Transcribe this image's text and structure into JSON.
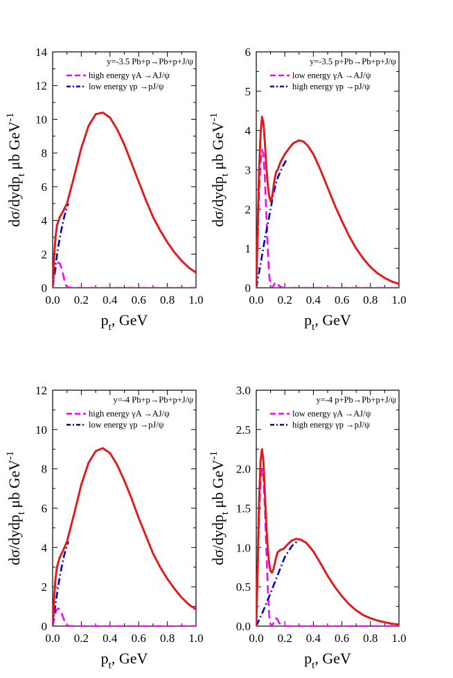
{
  "colors": {
    "total": "#e31a1c",
    "high": "#ff00ff",
    "low": "#0000cc",
    "axis": "#000000"
  },
  "chart_data": [
    {
      "id": "top-left",
      "type": "line",
      "xlabel": "p_t, GeV",
      "ylabel": "dσ/dydp_t μb GeV^-1",
      "xlim": [
        0,
        1.0
      ],
      "ylim": [
        0,
        14
      ],
      "xticks": [
        "0.0",
        "0.2",
        "0.4",
        "0.6",
        "0.8",
        "1.0"
      ],
      "xtick_values": [
        0,
        0.2,
        0.4,
        0.6,
        0.8,
        1.0
      ],
      "yticks": [
        "0",
        "2",
        "4",
        "6",
        "8",
        "10",
        "12",
        "14"
      ],
      "ytick_values": [
        0,
        2,
        4,
        6,
        8,
        10,
        12,
        14
      ],
      "legend_title": "y=-3.5 Pb+p→Pb+p+J/ψ",
      "legend_position": "top-right",
      "series": [
        {
          "key": "high",
          "name": "high energy γA →AJ/ψ",
          "style": "dashed",
          "x": [
            0,
            0.01,
            0.02,
            0.03,
            0.04,
            0.05,
            0.06,
            0.07,
            0.08,
            0.09,
            0.1,
            0.12,
            0.15,
            0.2,
            0.3,
            0.5,
            0.7,
            1.0
          ],
          "y": [
            0,
            0.6,
            1.1,
            1.4,
            1.5,
            1.45,
            1.2,
            0.9,
            0.5,
            0.2,
            0.05,
            0.02,
            0.01,
            0.0,
            0.0,
            0.0,
            0.0,
            0.0
          ]
        },
        {
          "key": "low",
          "name": "low energy γp →pJ/ψ",
          "style": "dashdot",
          "x": [
            0,
            0.02,
            0.04,
            0.06,
            0.08,
            0.1,
            0.11
          ],
          "y": [
            0,
            1.3,
            2.5,
            3.4,
            4.2,
            4.8,
            5.0
          ]
        },
        {
          "key": "total",
          "name": "",
          "style": "solid",
          "x": [
            0,
            0.01,
            0.02,
            0.03,
            0.05,
            0.07,
            0.1,
            0.15,
            0.2,
            0.25,
            0.3,
            0.35,
            0.4,
            0.45,
            0.5,
            0.55,
            0.6,
            0.65,
            0.7,
            0.75,
            0.8,
            0.85,
            0.9,
            0.95,
            1.0
          ],
          "y": [
            0,
            1.8,
            3.0,
            3.7,
            4.2,
            4.5,
            5.0,
            6.6,
            8.3,
            9.6,
            10.3,
            10.4,
            10.1,
            9.4,
            8.5,
            7.4,
            6.3,
            5.2,
            4.2,
            3.4,
            2.7,
            2.1,
            1.6,
            1.2,
            0.9
          ]
        }
      ]
    },
    {
      "id": "top-right",
      "type": "line",
      "xlabel": "p_t, GeV",
      "ylabel": "dσ/dydp_t μb GeV^-1",
      "xlim": [
        0,
        1.0
      ],
      "ylim": [
        0,
        6
      ],
      "xticks": [
        "0.0",
        "0.2",
        "0.4",
        "0.6",
        "0.8",
        "1.0"
      ],
      "xtick_values": [
        0,
        0.2,
        0.4,
        0.6,
        0.8,
        1.0
      ],
      "yticks": [
        "0",
        "1",
        "2",
        "3",
        "4",
        "5",
        "6"
      ],
      "ytick_values": [
        0,
        1,
        2,
        3,
        4,
        5,
        6
      ],
      "legend_title": "y=-3.5 p+Pb→Pb+p+J/ψ",
      "legend_position": "top-right",
      "series": [
        {
          "key": "high",
          "name": "low energy γA →AJ/ψ",
          "style": "dashed",
          "x": [
            0,
            0.01,
            0.02,
            0.03,
            0.04,
            0.05,
            0.06,
            0.07,
            0.08,
            0.09,
            0.1,
            0.11,
            0.12,
            0.13,
            0.14,
            0.15,
            0.16,
            0.18,
            0.2,
            0.3,
            0.5,
            1.0
          ],
          "y": [
            0,
            1.2,
            2.4,
            3.2,
            3.5,
            3.4,
            2.8,
            1.9,
            1.0,
            0.35,
            0.03,
            0.0,
            0.05,
            0.12,
            0.14,
            0.1,
            0.05,
            0.01,
            0.0,
            0.0,
            0.0,
            0.0
          ]
        },
        {
          "key": "low",
          "name": "high energy γp →pJ/ψ",
          "style": "dashdot",
          "x": [
            0,
            0.03,
            0.06,
            0.09,
            0.12,
            0.15,
            0.18,
            0.21
          ],
          "y": [
            0,
            0.6,
            1.25,
            1.8,
            2.4,
            2.8,
            3.05,
            3.25
          ]
        },
        {
          "key": "total",
          "name": "",
          "style": "solid",
          "x": [
            0,
            0.01,
            0.02,
            0.03,
            0.04,
            0.05,
            0.06,
            0.07,
            0.08,
            0.09,
            0.1,
            0.11,
            0.12,
            0.13,
            0.14,
            0.15,
            0.17,
            0.2,
            0.23,
            0.26,
            0.3,
            0.33,
            0.36,
            0.4,
            0.45,
            0.5,
            0.55,
            0.6,
            0.65,
            0.7,
            0.75,
            0.8,
            0.85,
            0.9,
            0.95,
            1.0
          ],
          "y": [
            0,
            1.6,
            3.0,
            3.9,
            4.35,
            4.2,
            3.7,
            3.1,
            2.65,
            2.35,
            2.2,
            2.3,
            2.55,
            2.8,
            2.95,
            3.0,
            3.2,
            3.4,
            3.55,
            3.68,
            3.75,
            3.72,
            3.62,
            3.4,
            3.0,
            2.55,
            2.1,
            1.7,
            1.32,
            1.0,
            0.74,
            0.53,
            0.37,
            0.25,
            0.16,
            0.1
          ]
        }
      ]
    },
    {
      "id": "bottom-left",
      "type": "line",
      "xlabel": "p_t, GeV",
      "ylabel": "dσ/dydp_t μb GeV^-1",
      "xlim": [
        0,
        1.0
      ],
      "ylim": [
        0,
        12
      ],
      "xticks": [
        "0.0",
        "0.2",
        "0.4",
        "0.6",
        "0.8",
        "1.0"
      ],
      "xtick_values": [
        0,
        0.2,
        0.4,
        0.6,
        0.8,
        1.0
      ],
      "yticks": [
        "0",
        "2",
        "4",
        "6",
        "8",
        "10",
        "12"
      ],
      "ytick_values": [
        0,
        2,
        4,
        6,
        8,
        10,
        12
      ],
      "legend_title": "y=-4 Pb+p→Pb+p+J/ψ",
      "legend_position": "top-right",
      "series": [
        {
          "key": "high",
          "name": "high energy γA →AJ/ψ",
          "style": "dashed",
          "x": [
            0,
            0.01,
            0.02,
            0.03,
            0.04,
            0.05,
            0.06,
            0.07,
            0.08,
            0.09,
            0.1,
            0.12,
            0.15,
            0.2,
            0.3,
            0.5,
            0.7,
            1.0
          ],
          "y": [
            0,
            0.4,
            0.7,
            0.85,
            0.9,
            0.85,
            0.7,
            0.5,
            0.3,
            0.12,
            0.03,
            0.01,
            0.0,
            0.0,
            0.0,
            0.0,
            0.0,
            0.0
          ]
        },
        {
          "key": "low",
          "name": "low energy γp →pJ/ψ",
          "style": "dashdot",
          "x": [
            0,
            0.02,
            0.04,
            0.06,
            0.08,
            0.1,
            0.11
          ],
          "y": [
            0,
            1.1,
            2.1,
            2.9,
            3.6,
            4.1,
            4.3
          ]
        },
        {
          "key": "total",
          "name": "",
          "style": "solid",
          "x": [
            0,
            0.01,
            0.02,
            0.03,
            0.05,
            0.07,
            0.1,
            0.15,
            0.2,
            0.25,
            0.3,
            0.35,
            0.4,
            0.45,
            0.5,
            0.55,
            0.6,
            0.65,
            0.7,
            0.75,
            0.8,
            0.85,
            0.9,
            0.95,
            1.0
          ],
          "y": [
            0,
            1.4,
            2.4,
            3.0,
            3.5,
            3.8,
            4.3,
            5.7,
            7.2,
            8.3,
            8.9,
            9.05,
            8.8,
            8.2,
            7.4,
            6.5,
            5.5,
            4.6,
            3.7,
            3.0,
            2.4,
            1.9,
            1.45,
            1.1,
            0.85
          ]
        }
      ]
    },
    {
      "id": "bottom-right",
      "type": "line",
      "xlabel": "p_t, GeV",
      "ylabel": "dσ/dydp_t μb GeV^-1",
      "xlim": [
        0,
        1.0
      ],
      "ylim": [
        0,
        3.0
      ],
      "xticks": [
        "0.0",
        "0.2",
        "0.4",
        "0.6",
        "0.8",
        "1.0"
      ],
      "xtick_values": [
        0,
        0.2,
        0.4,
        0.6,
        0.8,
        1.0
      ],
      "yticks": [
        "0.0",
        "0.5",
        "1.0",
        "1.5",
        "2.0",
        "2.5",
        "3.0"
      ],
      "ytick_values": [
        0,
        0.5,
        1.0,
        1.5,
        2.0,
        2.5,
        3.0
      ],
      "legend_title": "y=-4 p+Pb→Pb+p+J/ψ",
      "legend_position": "top-right",
      "series": [
        {
          "key": "high",
          "name": "low energy γA →AJ/ψ",
          "style": "dashed",
          "x": [
            0,
            0.01,
            0.02,
            0.03,
            0.04,
            0.05,
            0.06,
            0.07,
            0.08,
            0.09,
            0.1,
            0.11,
            0.12,
            0.13,
            0.14,
            0.15,
            0.16,
            0.18,
            0.2,
            0.3,
            0.5,
            1.0
          ],
          "y": [
            0,
            0.7,
            1.4,
            1.85,
            2.0,
            1.9,
            1.5,
            1.0,
            0.5,
            0.15,
            0.02,
            0.0,
            0.04,
            0.09,
            0.1,
            0.08,
            0.04,
            0.01,
            0.0,
            0.0,
            0.0,
            0.0
          ]
        },
        {
          "key": "low",
          "name": "high energy γp →pJ/ψ",
          "style": "dashdot",
          "x": [
            0,
            0.05,
            0.1,
            0.15,
            0.2,
            0.25,
            0.3
          ],
          "y": [
            0,
            0.2,
            0.42,
            0.65,
            0.88,
            1.02,
            1.1
          ]
        },
        {
          "key": "total",
          "name": "",
          "style": "solid",
          "x": [
            0,
            0.01,
            0.02,
            0.03,
            0.04,
            0.05,
            0.06,
            0.07,
            0.08,
            0.09,
            0.1,
            0.11,
            0.12,
            0.13,
            0.14,
            0.15,
            0.17,
            0.19,
            0.22,
            0.25,
            0.28,
            0.31,
            0.35,
            0.4,
            0.45,
            0.5,
            0.55,
            0.6,
            0.65,
            0.7,
            0.75,
            0.8,
            0.85,
            0.9,
            0.95,
            1.0
          ],
          "y": [
            0,
            0.8,
            1.6,
            2.1,
            2.25,
            2.1,
            1.7,
            1.3,
            1.0,
            0.8,
            0.7,
            0.68,
            0.72,
            0.8,
            0.88,
            0.94,
            0.97,
            0.98,
            1.04,
            1.09,
            1.11,
            1.1,
            1.06,
            0.95,
            0.8,
            0.64,
            0.5,
            0.38,
            0.28,
            0.2,
            0.14,
            0.1,
            0.07,
            0.05,
            0.03,
            0.02
          ]
        }
      ]
    }
  ]
}
